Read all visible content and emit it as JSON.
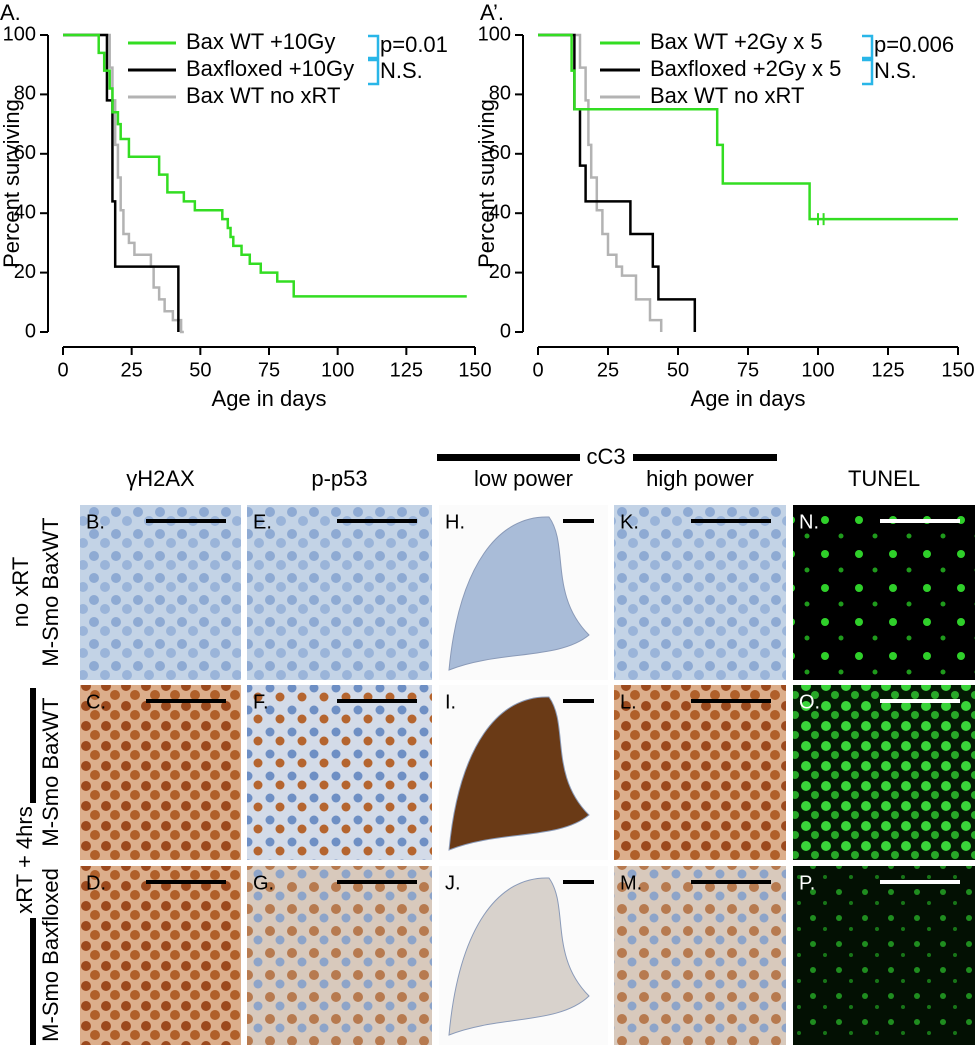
{
  "chart_data": [
    {
      "type": "step",
      "panel_label": "A.",
      "xlabel": "Age in days",
      "ylabel": "Percent surviving",
      "xlim": [
        0,
        150
      ],
      "ylim": [
        0,
        100
      ],
      "xticks": [
        0,
        25,
        50,
        75,
        100,
        125,
        150
      ],
      "yticks": [
        0,
        20,
        40,
        60,
        80,
        100
      ],
      "series": [
        {
          "name": "Bax WT +10Gy",
          "color": "#33dd22",
          "x": [
            0,
            13,
            15,
            17,
            18,
            20,
            21,
            24,
            35,
            38,
            44,
            48,
            58,
            60,
            61,
            62,
            65,
            68,
            72,
            78,
            84,
            147
          ],
          "values": [
            100,
            94,
            88,
            82,
            74,
            70,
            65,
            59,
            53,
            47,
            44,
            41,
            38,
            35,
            32,
            29,
            26,
            23,
            20,
            17,
            12,
            12
          ]
        },
        {
          "name": "Baxfloxed +10Gy",
          "color": "#000000",
          "x": [
            0,
            16,
            18,
            19,
            42
          ],
          "values": [
            100,
            78,
            44,
            22,
            0
          ]
        },
        {
          "name": "Bax WT no xRT",
          "color": "#b3b3b3",
          "x": [
            0,
            17,
            18,
            19,
            20,
            21,
            22,
            24,
            26,
            32,
            33,
            35,
            37,
            40,
            43,
            44
          ],
          "values": [
            100,
            89,
            78,
            63,
            52,
            41,
            33,
            30,
            26,
            22,
            15,
            11,
            7,
            4,
            0,
            0
          ]
        }
      ],
      "annotations": [
        "p=0.01",
        "N.S."
      ],
      "bracket_color": "#29b6e8"
    },
    {
      "type": "step",
      "panel_label": "A’.",
      "xlabel": "Age in days",
      "ylabel": "Percent surviving",
      "xlim": [
        0,
        150
      ],
      "ylim": [
        0,
        100
      ],
      "xticks": [
        0,
        25,
        50,
        75,
        100,
        125,
        150
      ],
      "yticks": [
        0,
        20,
        40,
        60,
        80,
        100
      ],
      "series": [
        {
          "name": "Bax WT +2Gy x 5",
          "color": "#33dd22",
          "x": [
            0,
            12,
            13,
            64,
            66,
            97,
            150
          ],
          "values": [
            100,
            88,
            75,
            63,
            50,
            38,
            38
          ],
          "censored": [
            100,
            102
          ]
        },
        {
          "name": "Baxfloxed +2Gy x 5",
          "color": "#000000",
          "x": [
            0,
            13,
            15,
            17,
            33,
            41,
            43,
            56
          ],
          "values": [
            100,
            75,
            56,
            44,
            33,
            22,
            11,
            0
          ]
        },
        {
          "name": "Bax WT no xRT",
          "color": "#b3b3b3",
          "x": [
            0,
            15,
            17,
            18,
            19,
            21,
            23,
            25,
            28,
            30,
            35,
            40,
            44
          ],
          "values": [
            100,
            89,
            78,
            63,
            52,
            41,
            33,
            26,
            22,
            19,
            11,
            4,
            0
          ]
        }
      ],
      "annotations": [
        "p=0.006",
        "N.S."
      ],
      "bracket_color": "#29b6e8"
    }
  ],
  "figure": {
    "group_header": "cC3",
    "columns": [
      "γH2AX",
      "p-p53",
      "low power",
      "high power",
      "TUNEL"
    ],
    "row_labels": [
      "no xRT",
      "M-Smo BaxWT",
      "M-Smo BaxWT",
      "M-Smo Baxfloxed"
    ],
    "treatment_label": "xRT + 4hrs",
    "panels": [
      [
        "B.",
        "E.",
        "H.",
        "K.",
        "N."
      ],
      [
        "C.",
        "F.",
        "I.",
        "L.",
        "O."
      ],
      [
        "D.",
        "G.",
        "J.",
        "M.",
        "P."
      ]
    ]
  }
}
